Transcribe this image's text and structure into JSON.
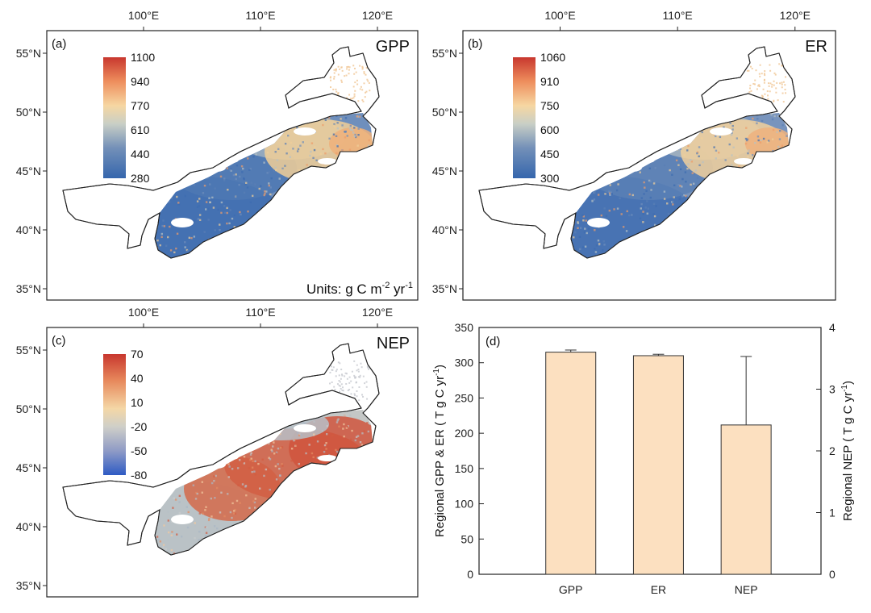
{
  "panels": [
    {
      "id": "a",
      "corner": "(a)",
      "variable": "GPP",
      "units_prefix": "Units: g C m",
      "units_exp1": "-2",
      "units_mid": " yr",
      "units_exp2": "-1",
      "colorbar": [
        "1100",
        "940",
        "770",
        "610",
        "440",
        "280"
      ],
      "lon_ticks": [
        "100°E",
        "110°E",
        "120°E"
      ],
      "lat_ticks": [
        "55°N",
        "50°N",
        "45°N",
        "40°N",
        "35°N"
      ],
      "palette": "gpp"
    },
    {
      "id": "b",
      "corner": "(b)",
      "variable": "ER",
      "colorbar": [
        "1060",
        "910",
        "750",
        "600",
        "450",
        "300"
      ],
      "lon_ticks": [
        "100°E",
        "110°E",
        "120°E"
      ],
      "lat_ticks": [
        "55°N",
        "50°N",
        "45°N",
        "40°N",
        "35°N"
      ],
      "palette": "er"
    },
    {
      "id": "c",
      "corner": "(c)",
      "variable": "NEP",
      "colorbar": [
        "70",
        "40",
        "10",
        "-20",
        "-50",
        "-80"
      ],
      "lon_ticks": [
        "100°E",
        "110°E",
        "120°E"
      ],
      "lat_ticks": [
        "55°N",
        "50°N",
        "45°N",
        "40°N",
        "35°N"
      ],
      "palette": "nep"
    }
  ],
  "colors": {
    "bar_fill": "#fce0c0",
    "bar_stroke": "#333333",
    "blue": "#3566ad",
    "grey": "#b9c3c4",
    "cream": "#f7d49b",
    "orange": "#ee8e5d",
    "red": "#c8372e"
  },
  "chart_data": {
    "type": "bar",
    "corner": "(d)",
    "categories": [
      "GPP",
      "ER",
      "NEP"
    ],
    "left_axis": {
      "label": "Regional GPP & ER ( T g C yr",
      "label_exp": "-1",
      "label_end": ")",
      "ylim": [
        0,
        350
      ],
      "ticks": [
        "0",
        "50",
        "100",
        "150",
        "200",
        "250",
        "300",
        "350"
      ]
    },
    "right_axis": {
      "label": "Regional NEP ( T g C yr",
      "label_exp": "-1",
      "label_end": ")",
      "ylim": [
        0,
        4
      ],
      "ticks": [
        "0",
        "1",
        "2",
        "3",
        "4"
      ]
    },
    "series": [
      {
        "category": "GPP",
        "axis": "left",
        "value": 315,
        "error": 3
      },
      {
        "category": "ER",
        "axis": "left",
        "value": 310,
        "error": 2
      },
      {
        "category": "NEP",
        "axis": "right",
        "value": 2.42,
        "error": 1.11
      }
    ],
    "grid": false,
    "legend": "none"
  }
}
